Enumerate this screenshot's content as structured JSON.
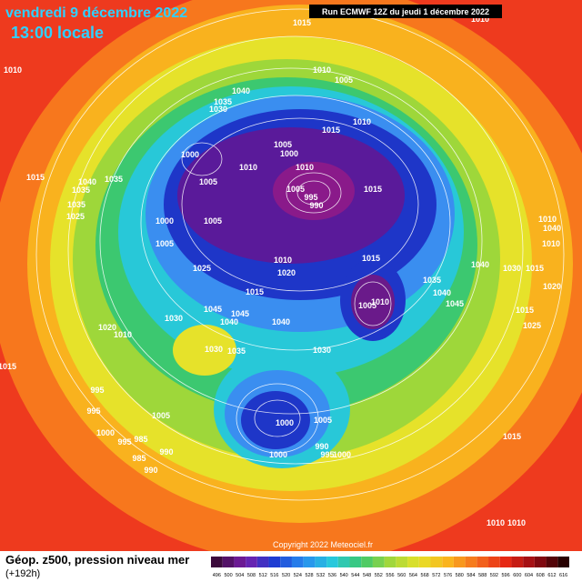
{
  "header": {
    "title": "vendredi 9 décembre 2022",
    "time": "13:00 locale",
    "run": "Run ECMWF 12Z du jeudi 1 décembre 2022"
  },
  "footer": {
    "caption": "Géop. z500, pression niveau mer",
    "lead_time": "(+192h)",
    "copyright": "Copyright 2022 Meteociel.fr"
  },
  "colorbar": {
    "labels": [
      496,
      500,
      504,
      508,
      512,
      516,
      520,
      524,
      528,
      532,
      536,
      540,
      544,
      548,
      552,
      556,
      560,
      564,
      568,
      572,
      576,
      580,
      584,
      588,
      592,
      596,
      600,
      604,
      608,
      612,
      616
    ]
  },
  "isobar_labels": [
    "1015",
    "1010",
    "1010",
    "1010",
    "1005",
    "1040",
    "1035",
    "1030",
    "1010",
    "1015",
    "1005",
    "1000",
    "1000",
    "1010",
    "1010",
    "1005",
    "1015",
    "1040",
    "1035",
    "1035",
    "1005",
    "995",
    "990",
    "1015",
    "1035",
    "1025",
    "1000",
    "1005",
    "1005",
    "1010",
    "1040",
    "1010",
    "1015",
    "1040",
    "1030",
    "1015",
    "1025",
    "1010",
    "1020",
    "1035",
    "1020",
    "1040",
    "1045",
    "1015",
    "1010",
    "1005",
    "1045",
    "1045",
    "1040",
    "1030",
    "1040",
    "1015",
    "1025",
    "1020",
    "1010",
    "1030",
    "1035",
    "1030",
    "1015",
    "995",
    "995",
    "1005",
    "1000",
    "1005",
    "1000",
    "995",
    "985",
    "990",
    "985",
    "990",
    "990",
    "995",
    "1000",
    "1000",
    "1015",
    "1010",
    "1010"
  ]
}
